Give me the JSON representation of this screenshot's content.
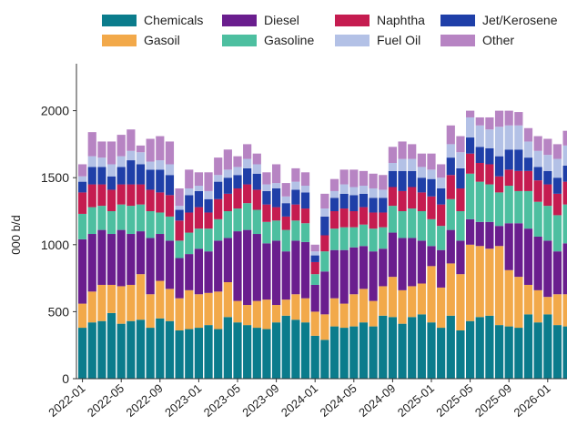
{
  "chart_data": {
    "type": "bar",
    "stacked": true,
    "title": "",
    "xlabel": "",
    "ylabel": "000 b/d",
    "ylim": [
      0,
      2300
    ],
    "yticks": [
      0,
      500,
      1000,
      1500,
      2000
    ],
    "grid": false,
    "legend_position": "top",
    "x_tick_labels": [
      "2022-01",
      "2022-05",
      "2022-09",
      "2023-01",
      "2023-05",
      "2023-09",
      "2024-01",
      "2024-05",
      "2024-09",
      "2025-01",
      "2025-05",
      "2025-09",
      "2026-01"
    ],
    "x_tick_every": 4,
    "categories": [
      "2022-01",
      "2022-02",
      "2022-03",
      "2022-04",
      "2022-05",
      "2022-06",
      "2022-07",
      "2022-08",
      "2022-09",
      "2022-10",
      "2022-11",
      "2022-12",
      "2023-01",
      "2023-02",
      "2023-03",
      "2023-04",
      "2023-05",
      "2023-06",
      "2023-07",
      "2023-08",
      "2023-09",
      "2023-10",
      "2023-11",
      "2023-12",
      "2024-01",
      "2024-02",
      "2024-03",
      "2024-04",
      "2024-05",
      "2024-06",
      "2024-07",
      "2024-08",
      "2024-09",
      "2024-10",
      "2024-11",
      "2024-12",
      "2025-01",
      "2025-02",
      "2025-03",
      "2025-04",
      "2025-05",
      "2025-06",
      "2025-07",
      "2025-08",
      "2025-09",
      "2025-10",
      "2025-11",
      "2025-12",
      "2026-01",
      "2026-02",
      "2026-03"
    ],
    "series": [
      {
        "name": "Chemicals",
        "color": "#0b7c8c",
        "values": [
          380,
          420,
          430,
          490,
          410,
          430,
          440,
          380,
          450,
          430,
          360,
          370,
          380,
          400,
          370,
          460,
          420,
          400,
          380,
          370,
          420,
          470,
          440,
          420,
          320,
          290,
          390,
          380,
          390,
          420,
          390,
          470,
          460,
          410,
          460,
          480,
          420,
          380,
          470,
          360,
          430,
          460,
          470,
          400,
          390,
          380,
          480,
          420,
          480,
          400,
          390
        ]
      },
      {
        "name": "Gasoil",
        "color": "#f2a94a",
        "values": [
          180,
          230,
          270,
          210,
          280,
          270,
          340,
          250,
          280,
          240,
          240,
          290,
          250,
          240,
          280,
          260,
          160,
          150,
          200,
          220,
          130,
          120,
          190,
          180,
          180,
          190,
          210,
          180,
          240,
          250,
          190,
          220,
          300,
          250,
          230,
          230,
          420,
          300,
          390,
          420,
          570,
          530,
          500,
          590,
          420,
          380,
          220,
          240,
          130,
          230,
          240
        ]
      },
      {
        "name": "Diesel",
        "color": "#6a1e8e",
        "values": [
          480,
          430,
          410,
          380,
          420,
          380,
          320,
          420,
          350,
          360,
          300,
          270,
          340,
          310,
          380,
          330,
          520,
          560,
          500,
          420,
          480,
          360,
          400,
          420,
          200,
          320,
          360,
          400,
          350,
          320,
          370,
          280,
          330,
          390,
          360,
          320,
          150,
          280,
          250,
          250,
          190,
          180,
          200,
          150,
          350,
          400,
          420,
          400,
          420,
          320,
          380
        ]
      },
      {
        "name": "Gasoline",
        "color": "#4dbfa0",
        "values": [
          190,
          200,
          180,
          170,
          190,
          210,
          200,
          200,
          160,
          180,
          130,
          160,
          150,
          170,
          160,
          200,
          170,
          200,
          180,
          160,
          150,
          160,
          150,
          140,
          80,
          150,
          160,
          170,
          150,
          160,
          170,
          160,
          200,
          200,
          220,
          220,
          200,
          180,
          230,
          220,
          340,
          300,
          280,
          250,
          280,
          240,
          280,
          260,
          260,
          270,
          290
        ]
      },
      {
        "name": "Naphtha",
        "color": "#c51c50",
        "values": [
          160,
          170,
          160,
          160,
          150,
          160,
          150,
          160,
          150,
          160,
          150,
          150,
          160,
          120,
          150,
          130,
          150,
          140,
          150,
          130,
          100,
          100,
          120,
          110,
          90,
          120,
          130,
          140,
          120,
          130,
          120,
          110,
          140,
          150,
          160,
          140,
          170,
          160,
          180,
          170,
          150,
          140,
          150,
          120,
          120,
          150,
          150,
          160,
          160,
          160,
          170
        ]
      },
      {
        "name": "Jet/Kerosene",
        "color": "#1f3fa8",
        "values": [
          80,
          130,
          130,
          100,
          130,
          180,
          150,
          150,
          170,
          150,
          80,
          130,
          120,
          100,
          130,
          120,
          100,
          120,
          120,
          100,
          140,
          100,
          110,
          120,
          50,
          140,
          100,
          110,
          120,
          100,
          110,
          110,
          120,
          150,
          120,
          110,
          130,
          120,
          130,
          150,
          120,
          120,
          120,
          150,
          150,
          160,
          100,
          100,
          100,
          120,
          120
        ]
      },
      {
        "name": "Fuel Oil",
        "color": "#b3c1e6",
        "values": [
          40,
          80,
          70,
          90,
          80,
          70,
          90,
          60,
          70,
          80,
          30,
          50,
          40,
          60,
          50,
          60,
          60,
          70,
          70,
          50,
          40,
          50,
          60,
          50,
          30,
          60,
          50,
          70,
          60,
          60,
          70,
          60,
          60,
          90,
          90,
          80,
          70,
          80,
          100,
          120,
          150,
          160,
          140,
          220,
          180,
          180,
          120,
          120,
          120,
          140,
          150
        ]
      },
      {
        "name": "Other",
        "color": "#b784c3",
        "values": [
          90,
          180,
          120,
          170,
          160,
          160,
          50,
          170,
          180,
          170,
          130,
          140,
          100,
          140,
          130,
          150,
          80,
          110,
          80,
          90,
          140,
          100,
          100,
          100,
          50,
          110,
          90,
          110,
          130,
          110,
          110,
          110,
          120,
          130,
          110,
          100,
          120,
          100,
          140,
          120,
          50,
          60,
          90,
          120,
          110,
          100,
          100,
          110,
          120,
          110,
          110
        ]
      }
    ]
  }
}
